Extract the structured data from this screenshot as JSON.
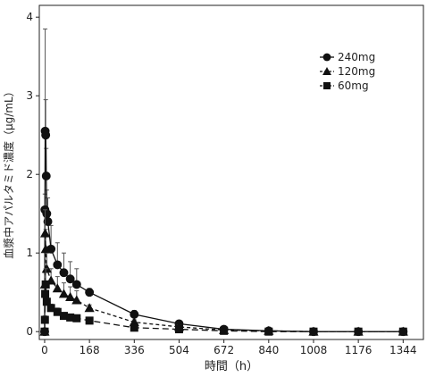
{
  "chart_data": {
    "type": "line",
    "title": "",
    "xlabel": "時間（h）",
    "ylabel": "血漿中アパルタミド濃度（μg/mL）",
    "xlim": [
      -20,
      1420
    ],
    "ylim": [
      -0.1,
      4.15
    ],
    "xticks": [
      0,
      168,
      336,
      504,
      672,
      840,
      1008,
      1176,
      1344
    ],
    "yticks": [
      0,
      1,
      2,
      3,
      4
    ],
    "grid": false,
    "legend_position": "top-right",
    "series": [
      {
        "name": "240mg",
        "marker": "circle",
        "dash": "",
        "points": [
          {
            "x": 0,
            "y": 0.0
          },
          {
            "x": 1,
            "y": 1.55
          },
          {
            "x": 2,
            "y": 2.55
          },
          {
            "x": 4,
            "y": 2.5
          },
          {
            "x": 6,
            "y": 1.98
          },
          {
            "x": 8,
            "y": 1.5
          },
          {
            "x": 12,
            "y": 1.4
          },
          {
            "x": 24,
            "y": 1.05
          },
          {
            "x": 48,
            "y": 0.85
          },
          {
            "x": 72,
            "y": 0.75
          },
          {
            "x": 96,
            "y": 0.67
          },
          {
            "x": 120,
            "y": 0.6
          },
          {
            "x": 168,
            "y": 0.5
          },
          {
            "x": 336,
            "y": 0.22
          },
          {
            "x": 504,
            "y": 0.1
          },
          {
            "x": 672,
            "y": 0.03
          },
          {
            "x": 840,
            "y": 0.01
          },
          {
            "x": 1008,
            "y": 0.0
          },
          {
            "x": 1176,
            "y": 0.0
          },
          {
            "x": 1344,
            "y": 0.0
          }
        ],
        "error": [
          0,
          0.2,
          1.3,
          0.45,
          0.35,
          0.3,
          0.3,
          0.3,
          0.28,
          0.25,
          0.22,
          0.2,
          0.05,
          0.05,
          0.04,
          0.02,
          0.01,
          0.01,
          0.01,
          0.01
        ]
      },
      {
        "name": "120mg",
        "marker": "triangle",
        "dash": "4,3",
        "points": [
          {
            "x": 0,
            "y": 0.0
          },
          {
            "x": 1,
            "y": 0.6
          },
          {
            "x": 2,
            "y": 1.25
          },
          {
            "x": 4,
            "y": 1.05
          },
          {
            "x": 8,
            "y": 0.8
          },
          {
            "x": 24,
            "y": 0.65
          },
          {
            "x": 48,
            "y": 0.55
          },
          {
            "x": 72,
            "y": 0.48
          },
          {
            "x": 96,
            "y": 0.44
          },
          {
            "x": 120,
            "y": 0.4
          },
          {
            "x": 168,
            "y": 0.3
          },
          {
            "x": 336,
            "y": 0.12
          },
          {
            "x": 504,
            "y": 0.06
          },
          {
            "x": 672,
            "y": 0.02
          },
          {
            "x": 840,
            "y": 0.01
          },
          {
            "x": 1008,
            "y": 0.0
          },
          {
            "x": 1176,
            "y": 0.0
          },
          {
            "x": 1344,
            "y": 0.0
          }
        ],
        "error": [
          0,
          0.15,
          0.3,
          0.25,
          0.2,
          0.15,
          0.15,
          0.14,
          0.13,
          0.12,
          0.04,
          0.03,
          0.02,
          0.01,
          0.01,
          0.01,
          0.01,
          0.01
        ]
      },
      {
        "name": "60mg",
        "marker": "square",
        "dash": "7,4",
        "points": [
          {
            "x": 0,
            "y": 0.0
          },
          {
            "x": 1,
            "y": 0.15
          },
          {
            "x": 2,
            "y": 0.48
          },
          {
            "x": 4,
            "y": 0.6
          },
          {
            "x": 8,
            "y": 0.38
          },
          {
            "x": 24,
            "y": 0.3
          },
          {
            "x": 48,
            "y": 0.25
          },
          {
            "x": 72,
            "y": 0.2
          },
          {
            "x": 96,
            "y": 0.18
          },
          {
            "x": 120,
            "y": 0.17
          },
          {
            "x": 168,
            "y": 0.14
          },
          {
            "x": 336,
            "y": 0.05
          },
          {
            "x": 504,
            "y": 0.03
          },
          {
            "x": 672,
            "y": 0.01
          },
          {
            "x": 840,
            "y": 0.0
          },
          {
            "x": 1008,
            "y": 0.0
          },
          {
            "x": 1176,
            "y": 0.0
          },
          {
            "x": 1344,
            "y": 0.0
          }
        ],
        "error": [
          0,
          0.05,
          0.1,
          0.2,
          0.1,
          0.05,
          0.05,
          0.04,
          0.03,
          0.03,
          0.02,
          0.01,
          0.01,
          0.01,
          0.01,
          0.01,
          0.01,
          0.01
        ]
      }
    ]
  }
}
